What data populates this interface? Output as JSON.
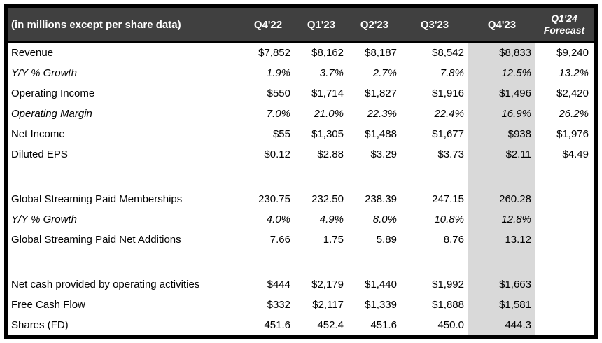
{
  "chart_data": {
    "type": "table",
    "title": "(in millions except per share data)",
    "columns": [
      "Q4'22",
      "Q1'23",
      "Q2'23",
      "Q3'23",
      "Q4'23",
      "Q1'24\nForecast"
    ],
    "highlighted_column": "Q4'23",
    "highlighted_column_index": 4,
    "rows": [
      {
        "label": "Revenue",
        "italic": false,
        "values": [
          "$7,852",
          "$8,162",
          "$8,187",
          "$8,542",
          "$8,833",
          "$9,240"
        ]
      },
      {
        "label": "Y/Y % Growth",
        "italic": true,
        "values": [
          "1.9%",
          "3.7%",
          "2.7%",
          "7.8%",
          "12.5%",
          "13.2%"
        ]
      },
      {
        "label": "Operating Income",
        "italic": false,
        "values": [
          "$550",
          "$1,714",
          "$1,827",
          "$1,916",
          "$1,496",
          "$2,420"
        ]
      },
      {
        "label": "Operating Margin",
        "italic": true,
        "values": [
          "7.0%",
          "21.0%",
          "22.3%",
          "22.4%",
          "16.9%",
          "26.2%"
        ]
      },
      {
        "label": "Net Income",
        "italic": false,
        "values": [
          "$55",
          "$1,305",
          "$1,488",
          "$1,677",
          "$938",
          "$1,976"
        ]
      },
      {
        "label": "Diluted EPS",
        "italic": false,
        "values": [
          "$0.12",
          "$2.88",
          "$3.29",
          "$3.73",
          "$2.11",
          "$4.49"
        ]
      },
      {
        "spacer": true,
        "label": "",
        "values": [
          "",
          "",
          "",
          "",
          "",
          ""
        ]
      },
      {
        "label": "Global Streaming Paid Memberships",
        "italic": false,
        "values": [
          "230.75",
          "232.50",
          "238.39",
          "247.15",
          "260.28",
          ""
        ]
      },
      {
        "label": "Y/Y % Growth",
        "italic": true,
        "values": [
          "4.0%",
          "4.9%",
          "8.0%",
          "10.8%",
          "12.8%",
          ""
        ]
      },
      {
        "label": "Global Streaming Paid Net Additions",
        "italic": false,
        "values": [
          "7.66",
          "1.75",
          "5.89",
          "8.76",
          "13.12",
          ""
        ]
      },
      {
        "spacer": true,
        "label": "",
        "values": [
          "",
          "",
          "",
          "",
          "",
          ""
        ]
      },
      {
        "label": "Net cash provided by operating activities",
        "italic": false,
        "values": [
          "$444",
          "$2,179",
          "$1,440",
          "$1,992",
          "$1,663",
          ""
        ]
      },
      {
        "label": "Free Cash Flow",
        "italic": false,
        "values": [
          "$332",
          "$2,117",
          "$1,339",
          "$1,888",
          "$1,581",
          ""
        ]
      },
      {
        "label": "Shares (FD)",
        "italic": false,
        "values": [
          "451.6",
          "452.4",
          "451.6",
          "450.0",
          "444.3",
          ""
        ]
      }
    ]
  },
  "colors": {
    "header_bg": "#404040",
    "header_text": "#ffffff",
    "highlight_bg": "#d9d9d9",
    "border": "#000000",
    "body_text": "#000000",
    "page_bg": "#ffffff"
  }
}
